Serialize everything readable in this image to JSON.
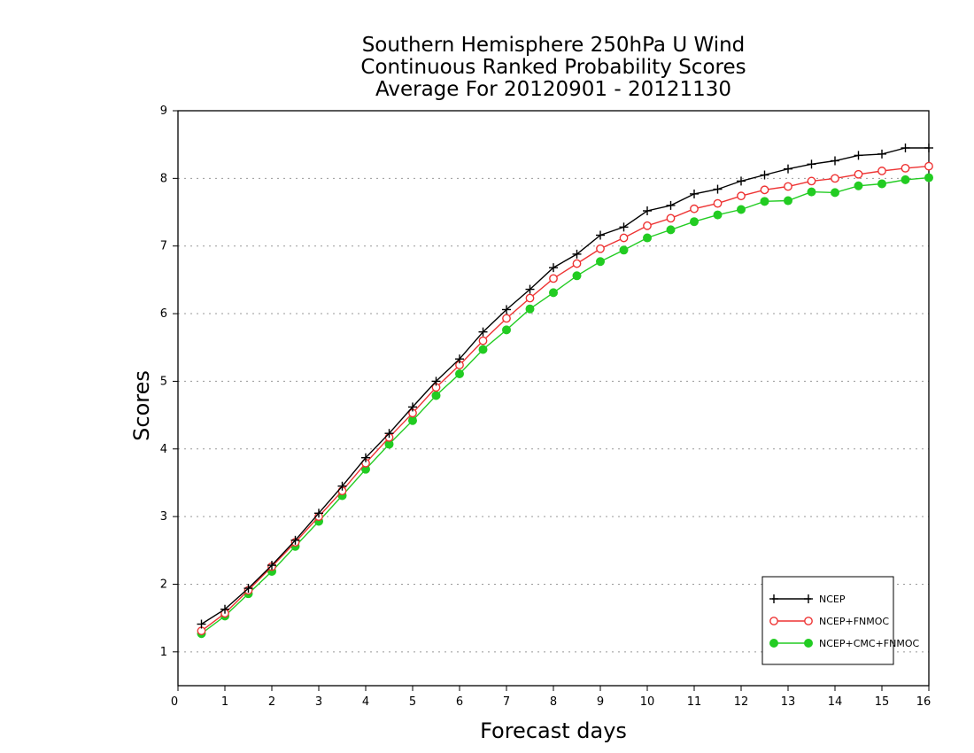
{
  "chart_data": {
    "type": "line",
    "title": [
      "Southern Hemisphere 250hPa U Wind",
      "Continuous Ranked Probability Scores",
      "Average For 20120901 - 20121130"
    ],
    "xlabel": "Forecast days",
    "ylabel": "Scores",
    "xlim": [
      0,
      16
    ],
    "ylim": [
      0.5,
      9
    ],
    "xticks": [
      "0",
      "1",
      "2",
      "3",
      "4",
      "5",
      "6",
      "7",
      "8",
      "9",
      "10",
      "11",
      "12",
      "13",
      "14",
      "15",
      "16"
    ],
    "yticks": [
      "1",
      "2",
      "3",
      "4",
      "5",
      "6",
      "7",
      "8",
      "9"
    ],
    "grid": "horizontal dotted",
    "legend_position": "bottom-right",
    "x": [
      0.5,
      1,
      1.5,
      2,
      2.5,
      3,
      3.5,
      4,
      4.5,
      5,
      5.5,
      6,
      6.5,
      7,
      7.5,
      8,
      8.5,
      9,
      9.5,
      10,
      10.5,
      11,
      11.5,
      12,
      12.5,
      13,
      13.5,
      14,
      14.5,
      15,
      15.5,
      16
    ],
    "series": [
      {
        "name": "NCEP",
        "color": "#000000",
        "marker": "plus",
        "values": [
          1.41,
          1.63,
          1.94,
          2.28,
          2.65,
          3.05,
          3.45,
          3.87,
          4.23,
          4.62,
          5.0,
          5.33,
          5.73,
          6.06,
          6.36,
          6.68,
          6.88,
          7.16,
          7.28,
          7.52,
          7.6,
          7.77,
          7.84,
          7.96,
          8.05,
          8.14,
          8.21,
          8.26,
          8.34,
          8.36,
          8.45,
          8.45
        ]
      },
      {
        "name": "NCEP+FNMOC",
        "color": "#ee3333",
        "marker": "open-circle",
        "values": [
          1.31,
          1.57,
          1.91,
          2.26,
          2.62,
          3.0,
          3.38,
          3.79,
          4.17,
          4.53,
          4.91,
          5.24,
          5.6,
          5.93,
          6.23,
          6.52,
          6.74,
          6.96,
          7.12,
          7.3,
          7.41,
          7.55,
          7.63,
          7.74,
          7.83,
          7.88,
          7.96,
          8.0,
          8.06,
          8.11,
          8.15,
          8.18
        ]
      },
      {
        "name": "NCEP+CMC+FNMOC",
        "color": "#22cc22",
        "marker": "filled-circle",
        "values": [
          1.27,
          1.53,
          1.86,
          2.19,
          2.56,
          2.93,
          3.31,
          3.7,
          4.07,
          4.42,
          4.79,
          5.11,
          5.47,
          5.76,
          6.07,
          6.31,
          6.56,
          6.77,
          6.94,
          7.12,
          7.24,
          7.36,
          7.46,
          7.54,
          7.66,
          7.67,
          7.8,
          7.79,
          7.89,
          7.92,
          7.98,
          8.01
        ]
      }
    ]
  }
}
